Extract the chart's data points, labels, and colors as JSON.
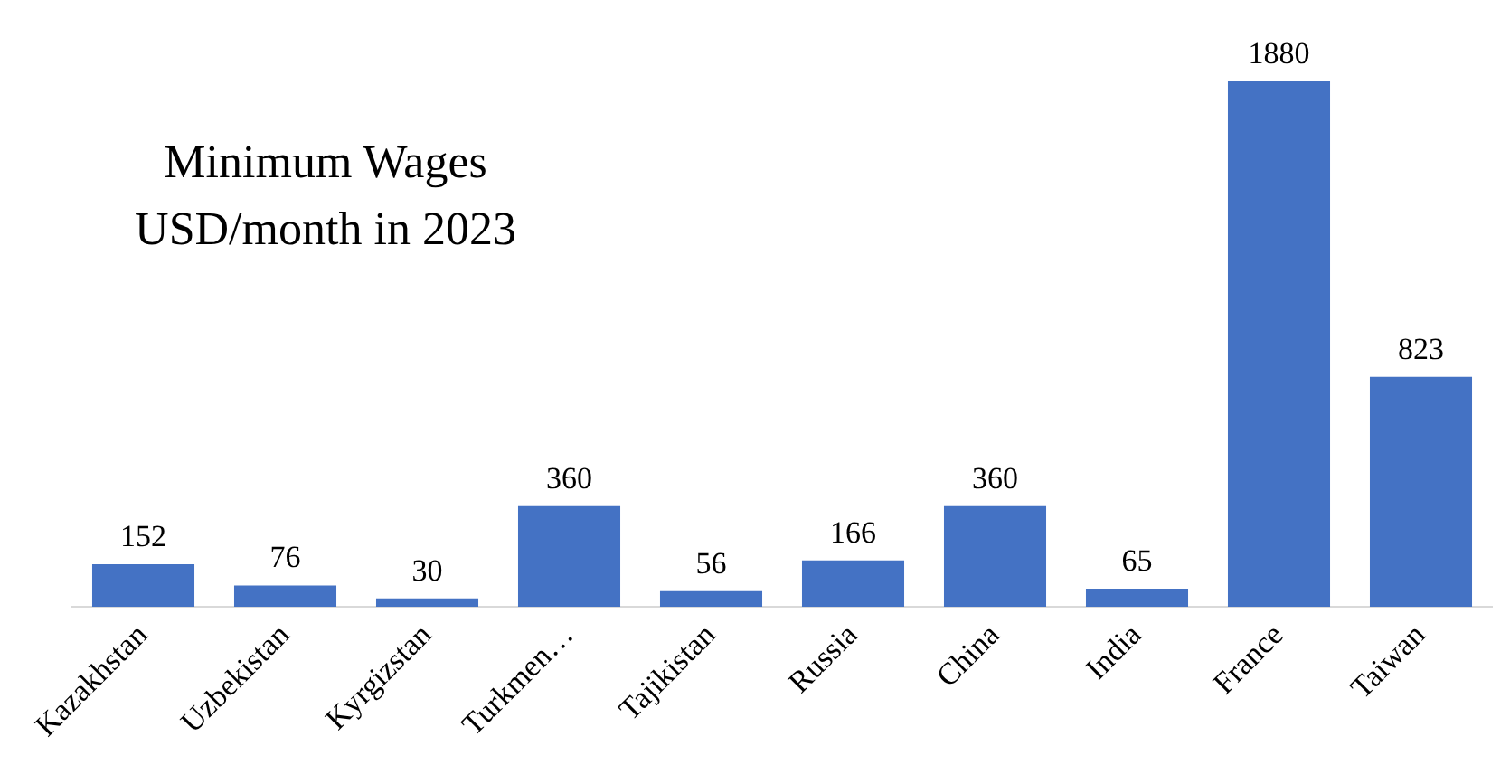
{
  "chart_data": {
    "type": "bar",
    "title": "Minimum Wages",
    "subtitle": "USD/month in 2023",
    "categories": [
      "Kazakhstan",
      "Uzbekistan",
      "Kyrgizstan",
      "Turkmen…",
      "Tajikistan",
      "Russia",
      "China",
      "India",
      "France",
      "Taiwan"
    ],
    "values": [
      152,
      76,
      30,
      360,
      56,
      166,
      360,
      65,
      1880,
      823
    ],
    "color": "#4472c4",
    "data_labels": true,
    "grid": false,
    "legend": false,
    "tick_labels": "x"
  }
}
